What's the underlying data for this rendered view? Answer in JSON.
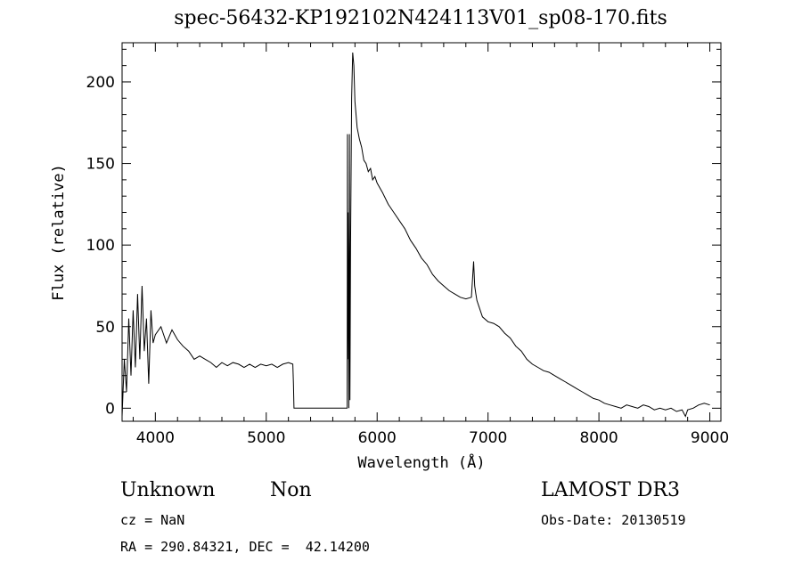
{
  "chart_data": {
    "type": "line",
    "title": "spec-56432-KP192102N424113V01_sp08-170.fits",
    "xlabel": "Wavelength (Å)",
    "ylabel": "Flux (relative)",
    "xlim": [
      3700,
      9100
    ],
    "ylim": [
      -8,
      224
    ],
    "xticks": [
      4000,
      5000,
      6000,
      7000,
      8000,
      9000
    ],
    "yticks": [
      0,
      50,
      100,
      150,
      200
    ],
    "series": [
      {
        "x": [
          3700,
          3720,
          3740,
          3760,
          3780,
          3800,
          3820,
          3840,
          3860,
          3880,
          3900,
          3920,
          3940,
          3960,
          3980,
          4000,
          4050,
          4100,
          4150,
          4200,
          4250,
          4300,
          4350,
          4400,
          4450,
          4500,
          4550,
          4600,
          4650,
          4700,
          4750,
          4800,
          4850,
          4900,
          4950,
          5000,
          5050,
          5100,
          5150,
          5200,
          5240,
          5245,
          5250,
          5500,
          5730,
          5732,
          5734,
          5738,
          5745,
          5750,
          5755,
          5760,
          5770,
          5780,
          5790,
          5800,
          5820,
          5840,
          5860,
          5880,
          5900,
          5920,
          5940,
          5960,
          5980,
          6000,
          6050,
          6100,
          6150,
          6200,
          6250,
          6300,
          6350,
          6400,
          6450,
          6500,
          6550,
          6600,
          6650,
          6700,
          6750,
          6800,
          6850,
          6870,
          6880,
          6890,
          6900,
          6920,
          6950,
          7000,
          7050,
          7100,
          7150,
          7200,
          7250,
          7300,
          7350,
          7400,
          7450,
          7500,
          7550,
          7600,
          7650,
          7700,
          7750,
          7800,
          7850,
          7900,
          7950,
          8000,
          8050,
          8100,
          8150,
          8200,
          8250,
          8300,
          8350,
          8400,
          8450,
          8500,
          8550,
          8600,
          8650,
          8700,
          8750,
          8780,
          8800,
          8850,
          8900,
          8950,
          9000
        ],
        "y": [
          -5,
          30,
          10,
          55,
          20,
          60,
          25,
          70,
          30,
          75,
          35,
          55,
          15,
          60,
          40,
          45,
          50,
          40,
          48,
          42,
          38,
          35,
          30,
          32,
          30,
          28,
          25,
          28,
          26,
          28,
          27,
          25,
          27,
          25,
          27,
          26,
          27,
          25,
          27,
          28,
          27,
          15,
          0,
          0,
          0,
          168,
          30,
          120,
          0,
          168,
          5,
          100,
          190,
          218,
          210,
          188,
          172,
          165,
          160,
          152,
          150,
          145,
          147,
          140,
          142,
          138,
          132,
          125,
          120,
          115,
          110,
          103,
          98,
          92,
          88,
          82,
          78,
          75,
          72,
          70,
          68,
          67,
          68,
          90,
          75,
          70,
          66,
          62,
          56,
          53,
          52,
          50,
          46,
          43,
          38,
          35,
          30,
          27,
          25,
          23,
          22,
          20,
          18,
          16,
          14,
          12,
          10,
          8,
          6,
          5,
          3,
          2,
          1,
          0,
          2,
          1,
          0,
          2,
          1,
          -1,
          0,
          -1,
          0,
          -2,
          -1,
          -5,
          -1,
          0,
          2,
          3,
          2
        ]
      }
    ]
  },
  "footer": {
    "class": "Unknown",
    "subclass": "Non",
    "cz": "cz = NaN",
    "coords": "RA = 290.84321, DEC =  42.14200",
    "survey": "LAMOST DR3",
    "obsdate": "Obs-Date: 20130519"
  }
}
